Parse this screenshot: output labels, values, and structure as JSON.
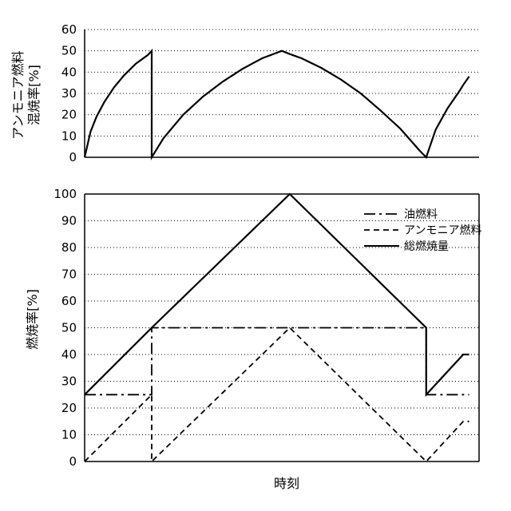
{
  "chart_data": [
    {
      "type": "line",
      "ylabel_lines": [
        "アンモニア燃料",
        "混焼率[%]"
      ],
      "xlabel": "",
      "ylim": [
        0,
        60
      ],
      "yticks": [
        0,
        10,
        20,
        30,
        40,
        50,
        60
      ],
      "xlim": [
        0,
        100
      ],
      "grid": true,
      "series": [
        {
          "id": "ammonia_ratio",
          "style": "solid",
          "x": [
            0,
            1.5,
            3,
            5,
            7.5,
            10,
            13,
            16,
            17,
            17,
            20,
            25,
            30,
            35,
            40,
            45,
            50,
            52,
            55,
            60,
            65,
            70,
            75,
            80,
            85,
            86.6,
            89,
            92,
            95,
            96,
            97.5
          ],
          "y": [
            0,
            12,
            19,
            26,
            33,
            38.5,
            44,
            48,
            50,
            0,
            9,
            20,
            28.5,
            35.5,
            41.5,
            46.5,
            50,
            48.5,
            46.5,
            42,
            36.5,
            30,
            22,
            13.5,
            3,
            0,
            13,
            23,
            31,
            34,
            38
          ]
        }
      ]
    },
    {
      "type": "line",
      "ylabel": "燃焼率[%]",
      "xlabel": "時刻",
      "ylim": [
        0,
        100
      ],
      "yticks": [
        0,
        10,
        20,
        30,
        40,
        50,
        60,
        70,
        80,
        90,
        100
      ],
      "xlim": [
        0,
        100
      ],
      "grid": true,
      "legend": "top-right",
      "series": [
        {
          "id": "oil",
          "name": "油燃料",
          "style": "dashdot",
          "x": [
            0,
            17,
            17,
            86.6,
            86.6,
            96,
            97.5
          ],
          "y": [
            25,
            25,
            50,
            50,
            25,
            25,
            25
          ]
        },
        {
          "id": "ammonia",
          "name": "アンモニア燃料",
          "style": "dashed",
          "x": [
            0,
            17,
            17,
            52,
            86.6,
            96,
            97.5
          ],
          "y": [
            0,
            25,
            0,
            50,
            0,
            15,
            15
          ]
        },
        {
          "id": "total",
          "name": "総燃焼量",
          "style": "solid",
          "x": [
            0,
            17,
            52,
            86.6,
            86.6,
            96,
            97.5
          ],
          "y": [
            25,
            50,
            100,
            50,
            25,
            40,
            40
          ]
        }
      ]
    }
  ]
}
